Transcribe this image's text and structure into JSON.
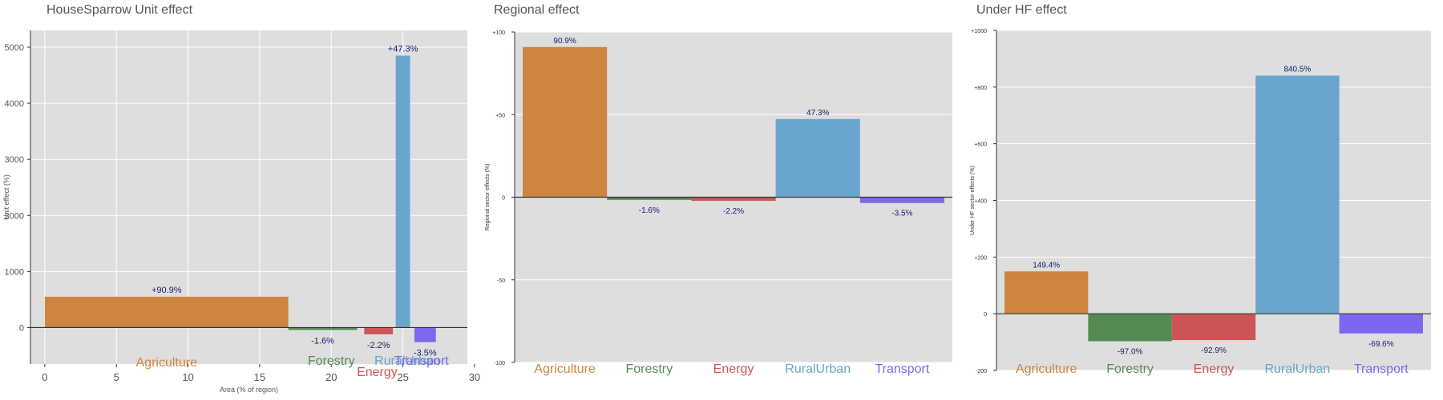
{
  "colors": {
    "panel_bg": "#dedede",
    "grid": "#ffffff",
    "label_dark": "#1a1a6e",
    "Agriculture": "#cd853f",
    "Forestry": "#538b53",
    "Energy": "#cd5555",
    "RuralUrban": "#6aa5cd",
    "Transport": "#7b68ee"
  },
  "chart_data": [
    {
      "type": "bar",
      "title": "HouseSparrow Unit effect",
      "xlabel": "Area (% of region)",
      "ylabel": "Unit effect (%)",
      "xlim": [
        -1,
        29.5
      ],
      "ylim": [
        -650,
        5300
      ],
      "xticks": [
        0,
        5,
        10,
        15,
        20,
        25,
        30
      ],
      "yticks": [
        0,
        1000,
        2000,
        3000,
        4000,
        5000
      ],
      "grid": true,
      "bars": [
        {
          "name": "Agriculture",
          "x0": 0,
          "x1": 17,
          "value": 550,
          "label": "+90.9%",
          "cat_x": 8.5
        },
        {
          "name": "Forestry",
          "x0": 17,
          "x1": 21.8,
          "value": -40,
          "label": "-1.6%",
          "cat_x": 20
        },
        {
          "name": "Energy",
          "x0": 22.3,
          "x1": 24.3,
          "value": -120,
          "label": "-2.2%",
          "cat_x": 23.2
        },
        {
          "name": "RuralUrban",
          "x0": 24.5,
          "x1": 25.5,
          "value": 4850,
          "label": "+47.3%",
          "cat_x": 25.3
        },
        {
          "name": "Transport",
          "x0": 25.8,
          "x1": 27.3,
          "value": -260,
          "label": "-3.5%",
          "cat_x": 26.3
        }
      ]
    },
    {
      "type": "bar",
      "title": "Regional effect",
      "xlabel": "",
      "ylabel": "Regional sector effects (%)",
      "ylim": [
        -100,
        100
      ],
      "yticks": [
        -100,
        -50,
        0,
        50,
        100
      ],
      "ytick_labels": [
        "-100",
        "-50",
        "0",
        "+50",
        "+100"
      ],
      "grid": true,
      "categories": [
        "Agriculture",
        "Forestry",
        "Energy",
        "RuralUrban",
        "Transport"
      ],
      "values": [
        90.9,
        -1.6,
        -2.2,
        47.3,
        -3.5
      ],
      "labels": [
        "90.9%",
        "-1.6%",
        "-2.2%",
        "47.3%",
        "-3.5%"
      ]
    },
    {
      "type": "bar",
      "title": "Under HF effect",
      "xlabel": "",
      "ylabel": "Under HF sector effects (%)",
      "ylim": [
        -200,
        1000
      ],
      "yticks": [
        -200,
        0,
        200,
        400,
        600,
        800,
        1000
      ],
      "ytick_labels": [
        "-200",
        "0",
        "+200",
        "+400",
        "+600",
        "+800",
        "+1000"
      ],
      "grid": true,
      "categories": [
        "Agriculture",
        "Forestry",
        "Energy",
        "RuralUrban",
        "Transport"
      ],
      "values": [
        149.4,
        -97.0,
        -92.9,
        840.5,
        -69.6
      ],
      "labels": [
        "149.4%",
        "-97.0%",
        "-92.9%",
        "840.5%",
        "-69.6%"
      ]
    }
  ]
}
